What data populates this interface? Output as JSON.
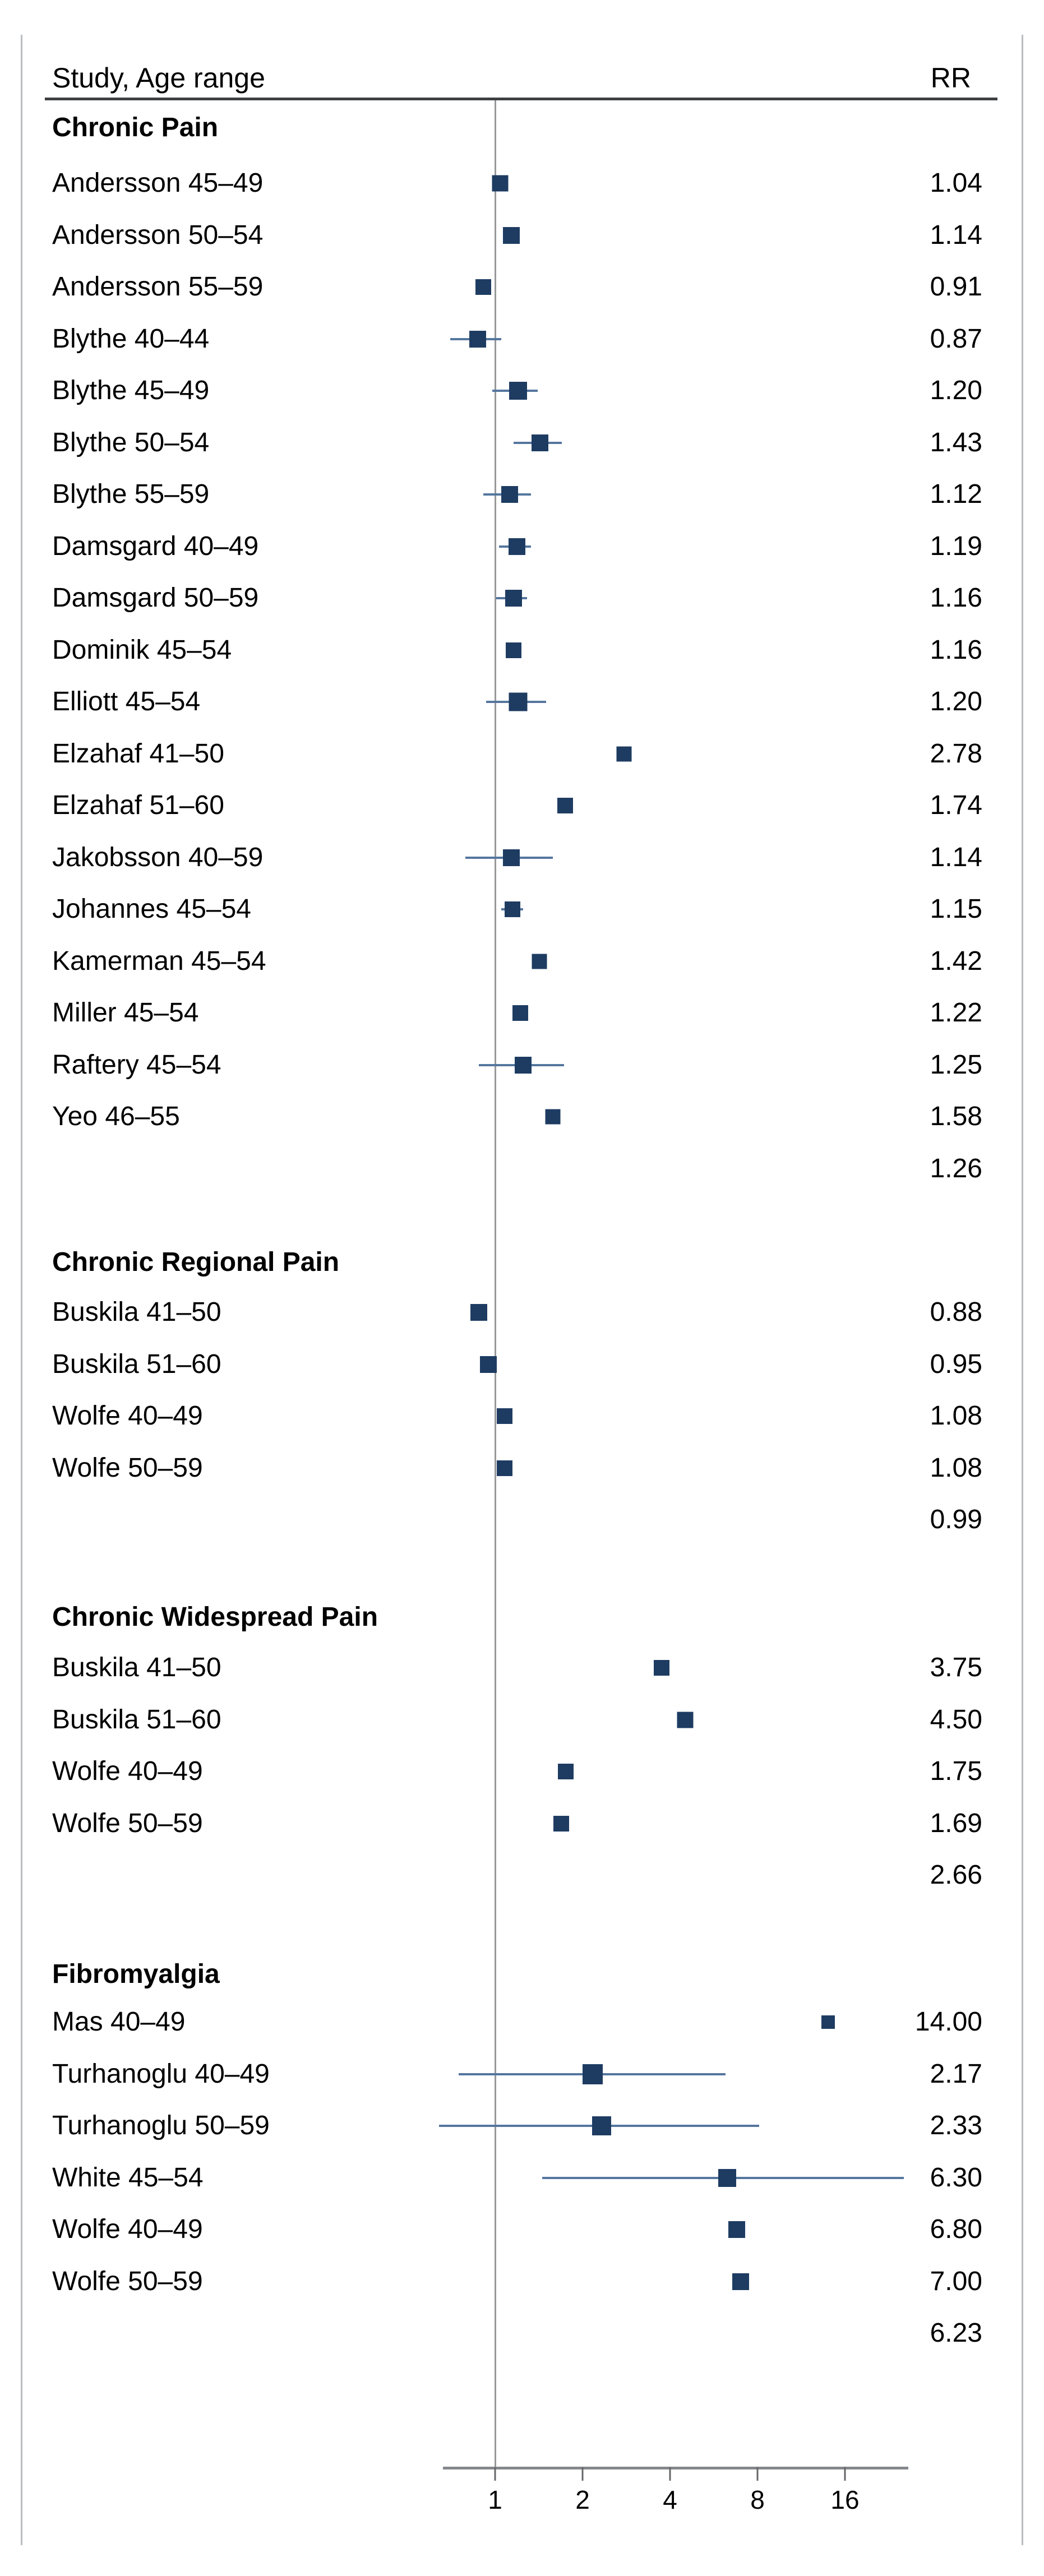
{
  "figure": {
    "header": {
      "study_col": "Study, Age range",
      "rr_col": "RR"
    }
  },
  "chart_data": {
    "type": "scatter",
    "variant": "forest-plot",
    "title": "",
    "xlabel": "",
    "columns": {
      "left": "Study, Age range",
      "right": "RR"
    },
    "x_axis": {
      "scale": "log2",
      "ticks": [
        1,
        2,
        4,
        8,
        16
      ],
      "range_approx": [
        0.66,
        26
      ],
      "reference_value": 1,
      "grid": false
    },
    "marker_color": "#1e3c62",
    "ci_color": "#54769e",
    "groups": [
      {
        "label": "Chronic Pain",
        "pooled_rr_text": "1.26",
        "studies": [
          {
            "label": "Andersson 45–49",
            "rr": 1.04,
            "rr_text": "1.04",
            "ci": null,
            "marker_size": 29
          },
          {
            "label": "Andersson 50–54",
            "rr": 1.14,
            "rr_text": "1.14",
            "ci": null,
            "marker_size": 30
          },
          {
            "label": "Andersson 55–59",
            "rr": 0.91,
            "rr_text": "0.91",
            "ci": null,
            "marker_size": 28
          },
          {
            "label": "Blythe 40–44",
            "rr": 0.87,
            "rr_text": "0.87",
            "ci": [
              0.7,
              1.05
            ],
            "marker_size": 30
          },
          {
            "label": "Blythe 45–49",
            "rr": 1.2,
            "rr_text": "1.20",
            "ci": [
              0.98,
              1.4
            ],
            "marker_size": 32
          },
          {
            "label": "Blythe 50–54",
            "rr": 1.43,
            "rr_text": "1.43",
            "ci": [
              1.16,
              1.7
            ],
            "marker_size": 30
          },
          {
            "label": "Blythe 55–59",
            "rr": 1.12,
            "rr_text": "1.12",
            "ci": [
              0.91,
              1.33
            ],
            "marker_size": 30
          },
          {
            "label": "Damsgard 40–49",
            "rr": 1.19,
            "rr_text": "1.19",
            "ci": [
              1.03,
              1.33
            ],
            "marker_size": 30
          },
          {
            "label": "Damsgard 50–59",
            "rr": 1.16,
            "rr_text": "1.16",
            "ci": [
              1.01,
              1.29
            ],
            "marker_size": 30
          },
          {
            "label": "Dominik 45–54",
            "rr": 1.16,
            "rr_text": "1.16",
            "ci": null,
            "marker_size": 28
          },
          {
            "label": "Elliott 45–54",
            "rr": 1.2,
            "rr_text": "1.20",
            "ci": [
              0.93,
              1.5
            ],
            "marker_size": 33
          },
          {
            "label": "Elzahaf 41–50",
            "rr": 2.78,
            "rr_text": "2.78",
            "ci": null,
            "marker_size": 27
          },
          {
            "label": "Elzahaf 51–60",
            "rr": 1.74,
            "rr_text": "1.74",
            "ci": null,
            "marker_size": 28
          },
          {
            "label": "Jakobsson 40–59",
            "rr": 1.14,
            "rr_text": "1.14",
            "ci": [
              0.79,
              1.58
            ],
            "marker_size": 30
          },
          {
            "label": "Johannes 45–54",
            "rr": 1.15,
            "rr_text": "1.15",
            "ci": [
              1.05,
              1.25
            ],
            "marker_size": 28
          },
          {
            "label": "Kamerman 45–54",
            "rr": 1.42,
            "rr_text": "1.42",
            "ci": null,
            "marker_size": 27
          },
          {
            "label": "Miller 45–54",
            "rr": 1.22,
            "rr_text": "1.22",
            "ci": null,
            "marker_size": 28
          },
          {
            "label": "Raftery 45–54",
            "rr": 1.25,
            "rr_text": "1.25",
            "ci": [
              0.88,
              1.73
            ],
            "marker_size": 30
          },
          {
            "label": "Yeo 46–55",
            "rr": 1.58,
            "rr_text": "1.58",
            "ci": null,
            "marker_size": 27
          }
        ]
      },
      {
        "label": "Chronic Regional Pain",
        "pooled_rr_text": "0.99",
        "studies": [
          {
            "label": "Buskila 41–50",
            "rr": 0.88,
            "rr_text": "0.88",
            "ci": null,
            "marker_size": 30
          },
          {
            "label": "Buskila 51–60",
            "rr": 0.95,
            "rr_text": "0.95",
            "ci": null,
            "marker_size": 30
          },
          {
            "label": "Wolfe 40–49",
            "rr": 1.08,
            "rr_text": "1.08",
            "ci": null,
            "marker_size": 28
          },
          {
            "label": "Wolfe 50–59",
            "rr": 1.08,
            "rr_text": "1.08",
            "ci": null,
            "marker_size": 28
          }
        ]
      },
      {
        "label": "Chronic Widespread Pain",
        "pooled_rr_text": "2.66",
        "studies": [
          {
            "label": "Buskila 41–50",
            "rr": 3.75,
            "rr_text": "3.75",
            "ci": null,
            "marker_size": 28
          },
          {
            "label": "Buskila 51–60",
            "rr": 4.5,
            "rr_text": "4.50",
            "ci": null,
            "marker_size": 29
          },
          {
            "label": "Wolfe 40–49",
            "rr": 1.75,
            "rr_text": "1.75",
            "ci": null,
            "marker_size": 28
          },
          {
            "label": "Wolfe 50–59",
            "rr": 1.69,
            "rr_text": "1.69",
            "ci": null,
            "marker_size": 28
          }
        ]
      },
      {
        "label": "Fibromyalgia",
        "pooled_rr_text": "6.23",
        "studies": [
          {
            "label": "Mas 40–49",
            "rr": 14.0,
            "rr_text": "14.00",
            "ci": null,
            "marker_size": 24
          },
          {
            "label": "Turhanoglu 40–49",
            "rr": 2.17,
            "rr_text": "2.17",
            "ci": [
              0.75,
              6.2
            ],
            "marker_size": 36
          },
          {
            "label": "Turhanoglu 50–59",
            "rr": 2.33,
            "rr_text": "2.33",
            "ci": [
              0.64,
              8.1
            ],
            "marker_size": 34
          },
          {
            "label": "White 45–54",
            "rr": 6.3,
            "rr_text": "6.30",
            "ci": [
              1.45,
              25.5
            ],
            "marker_size": 32
          },
          {
            "label": "Wolfe 40–49",
            "rr": 6.8,
            "rr_text": "6.80",
            "ci": null,
            "marker_size": 30
          },
          {
            "label": "Wolfe 50–59",
            "rr": 7.0,
            "rr_text": "7.00",
            "ci": null,
            "marker_size": 30
          }
        ]
      }
    ]
  }
}
